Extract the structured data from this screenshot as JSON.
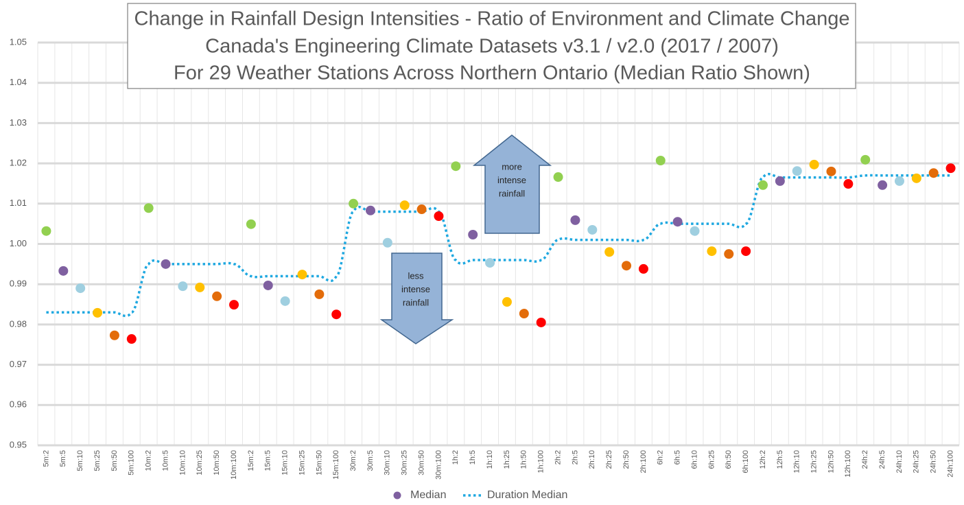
{
  "chart_data": {
    "type": "scatter",
    "title": [
      "Change in Rainfall Design Intensities - Ratio of Environment and Climate Change",
      "Canada's Engineering Climate Datasets v3.1 / v2.0 (2017 / 2007)",
      "For 29 Weather Stations Across Northern Ontario (Median Ratio Shown)"
    ],
    "categories": [
      "5m:2",
      "5m:5",
      "5m:10",
      "5m:25",
      "5m:50",
      "5m:100",
      "10m:2",
      "10m:5",
      "10m:10",
      "10m:25",
      "10m:50",
      "10m:100",
      "15m:2",
      "15m:5",
      "15m:10",
      "15m:25",
      "15m:50",
      "15m:100",
      "30m:2",
      "30m:5",
      "30m:10",
      "30m:25",
      "30m:50",
      "30m:100",
      "1h:2",
      "1h:5",
      "1h:10",
      "1h:25",
      "1h:50",
      "1h:100",
      "2h:2",
      "2h:5",
      "2h:10",
      "2h:25",
      "2h:50",
      "2h:100",
      "6h:2",
      "6h:5",
      "6h:10",
      "6h:25",
      "6h:50",
      "6h:100",
      "12h:2",
      "12h:5",
      "12h:10",
      "12h:25",
      "12h:50",
      "12h:100",
      "24h:2",
      "24h:5",
      "24h:10",
      "24h:25",
      "24h:50",
      "24h:100"
    ],
    "series": [
      {
        "name": "Median",
        "color": "#7f60a0",
        "point_colors": [
          "#92d050",
          "#7f60a0",
          "#9fcfe0",
          "#ffc000",
          "#e36c0a",
          "#ff0000",
          "#92d050",
          "#7f60a0",
          "#9fcfe0",
          "#ffc000",
          "#e36c0a",
          "#ff0000",
          "#92d050",
          "#7f60a0",
          "#9fcfe0",
          "#ffc000",
          "#e36c0a",
          "#ff0000",
          "#92d050",
          "#7f60a0",
          "#9fcfe0",
          "#ffc000",
          "#e36c0a",
          "#ff0000",
          "#92d050",
          "#7f60a0",
          "#9fcfe0",
          "#ffc000",
          "#e36c0a",
          "#ff0000",
          "#92d050",
          "#7f60a0",
          "#9fcfe0",
          "#ffc000",
          "#e36c0a",
          "#ff0000",
          "#92d050",
          "#7f60a0",
          "#9fcfe0",
          "#ffc000",
          "#e36c0a",
          "#ff0000",
          "#92d050",
          "#7f60a0",
          "#9fcfe0",
          "#ffc000",
          "#e36c0a",
          "#ff0000",
          "#92d050",
          "#7f60a0",
          "#9fcfe0",
          "#ffc000",
          "#e36c0a",
          "#ff0000"
        ],
        "values": [
          1.0032,
          0.9933,
          0.989,
          0.9829,
          0.9773,
          0.9764,
          1.0089,
          0.995,
          0.9895,
          0.9892,
          0.987,
          0.9849,
          1.0049,
          0.9897,
          0.9858,
          0.9924,
          0.9875,
          0.9825,
          1.01,
          1.0083,
          1.0003,
          1.0096,
          1.0086,
          1.0069,
          1.0193,
          1.0023,
          0.9953,
          0.9856,
          0.9827,
          0.9805,
          1.0166,
          1.0059,
          1.0035,
          0.998,
          0.9946,
          0.9938,
          1.0207,
          1.0055,
          1.0032,
          0.9982,
          0.9975,
          0.9982,
          1.0146,
          1.0156,
          1.0181,
          1.0197,
          1.018,
          1.0149,
          1.0209,
          1.0146,
          1.0156,
          1.0163,
          1.0176,
          1.0188
        ]
      },
      {
        "name": "Duration Median",
        "type": "line",
        "style": "dotted",
        "color": "#1fa8e0",
        "values": [
          0.983,
          0.983,
          0.983,
          0.983,
          0.983,
          0.983,
          0.995,
          0.995,
          0.995,
          0.995,
          0.995,
          0.995,
          0.992,
          0.992,
          0.992,
          0.992,
          0.992,
          0.992,
          1.008,
          1.008,
          1.008,
          1.008,
          1.008,
          1.008,
          0.996,
          0.996,
          0.996,
          0.996,
          0.996,
          0.996,
          1.001,
          1.001,
          1.001,
          1.001,
          1.001,
          1.001,
          1.005,
          1.005,
          1.005,
          1.005,
          1.005,
          1.005,
          1.0165,
          1.0165,
          1.0165,
          1.0165,
          1.0165,
          1.0165,
          1.017,
          1.017,
          1.017,
          1.017,
          1.017,
          1.017
        ]
      }
    ],
    "ylim": [
      0.95,
      1.05
    ],
    "yticks": [
      {
        "value": 0.95,
        "label": "0.95"
      },
      {
        "value": 0.96,
        "label": "0.96"
      },
      {
        "value": 0.97,
        "label": "0.97"
      },
      {
        "value": 0.98,
        "label": "0.98"
      },
      {
        "value": 0.99,
        "label": "0.99"
      },
      {
        "value": 1.0,
        "label": "1.00"
      },
      {
        "value": 1.01,
        "label": "1.01"
      },
      {
        "value": 1.02,
        "label": "1.02"
      },
      {
        "value": 1.03,
        "label": "1.03"
      },
      {
        "value": 1.04,
        "label": "1.04"
      },
      {
        "value": 1.05,
        "label": "1.05"
      }
    ],
    "grid": true,
    "legend": "bottom",
    "annotations": [
      {
        "lines": [
          "more",
          "intense",
          "rainfall"
        ],
        "direction": "up"
      },
      {
        "lines": [
          "less",
          "intense",
          "rainfall"
        ],
        "direction": "down"
      }
    ]
  }
}
